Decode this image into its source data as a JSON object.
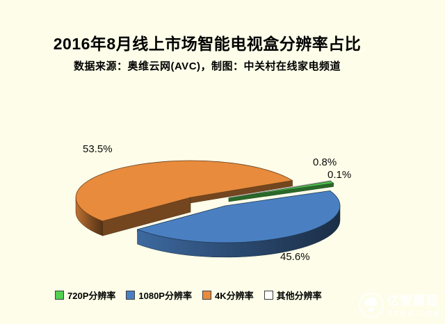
{
  "page": {
    "background": "#FDFDE9"
  },
  "header": {
    "title": "2016年8月线上市场智能电视盒分辨率占比",
    "subtitle": "数据来源：奥维云网(AVC)，制图：中关村在线家电频道"
  },
  "chart_data": {
    "type": "pie",
    "style": "3d-exploded",
    "title": "2016年8月线上市场智能电视盒分辨率占比",
    "unit": "%",
    "legend_position": "bottom",
    "label_format": "percent-outside",
    "slices": [
      {
        "label": "720P分辨率",
        "value": 0.8,
        "display": "0.8%",
        "color": "#53CF53"
      },
      {
        "label": "1080P分辨率",
        "value": 45.6,
        "display": "45.6%",
        "color": "#4A80C2"
      },
      {
        "label": "4K分辨率",
        "value": 53.5,
        "display": "53.5%",
        "color": "#E88B3D"
      },
      {
        "label": "其他分辨率",
        "value": 0.1,
        "display": "0.1%",
        "color": "#FFFFFF"
      }
    ]
  },
  "watermark": {
    "brand": "亿智蘑菇",
    "domain": "YZMG.COM"
  }
}
